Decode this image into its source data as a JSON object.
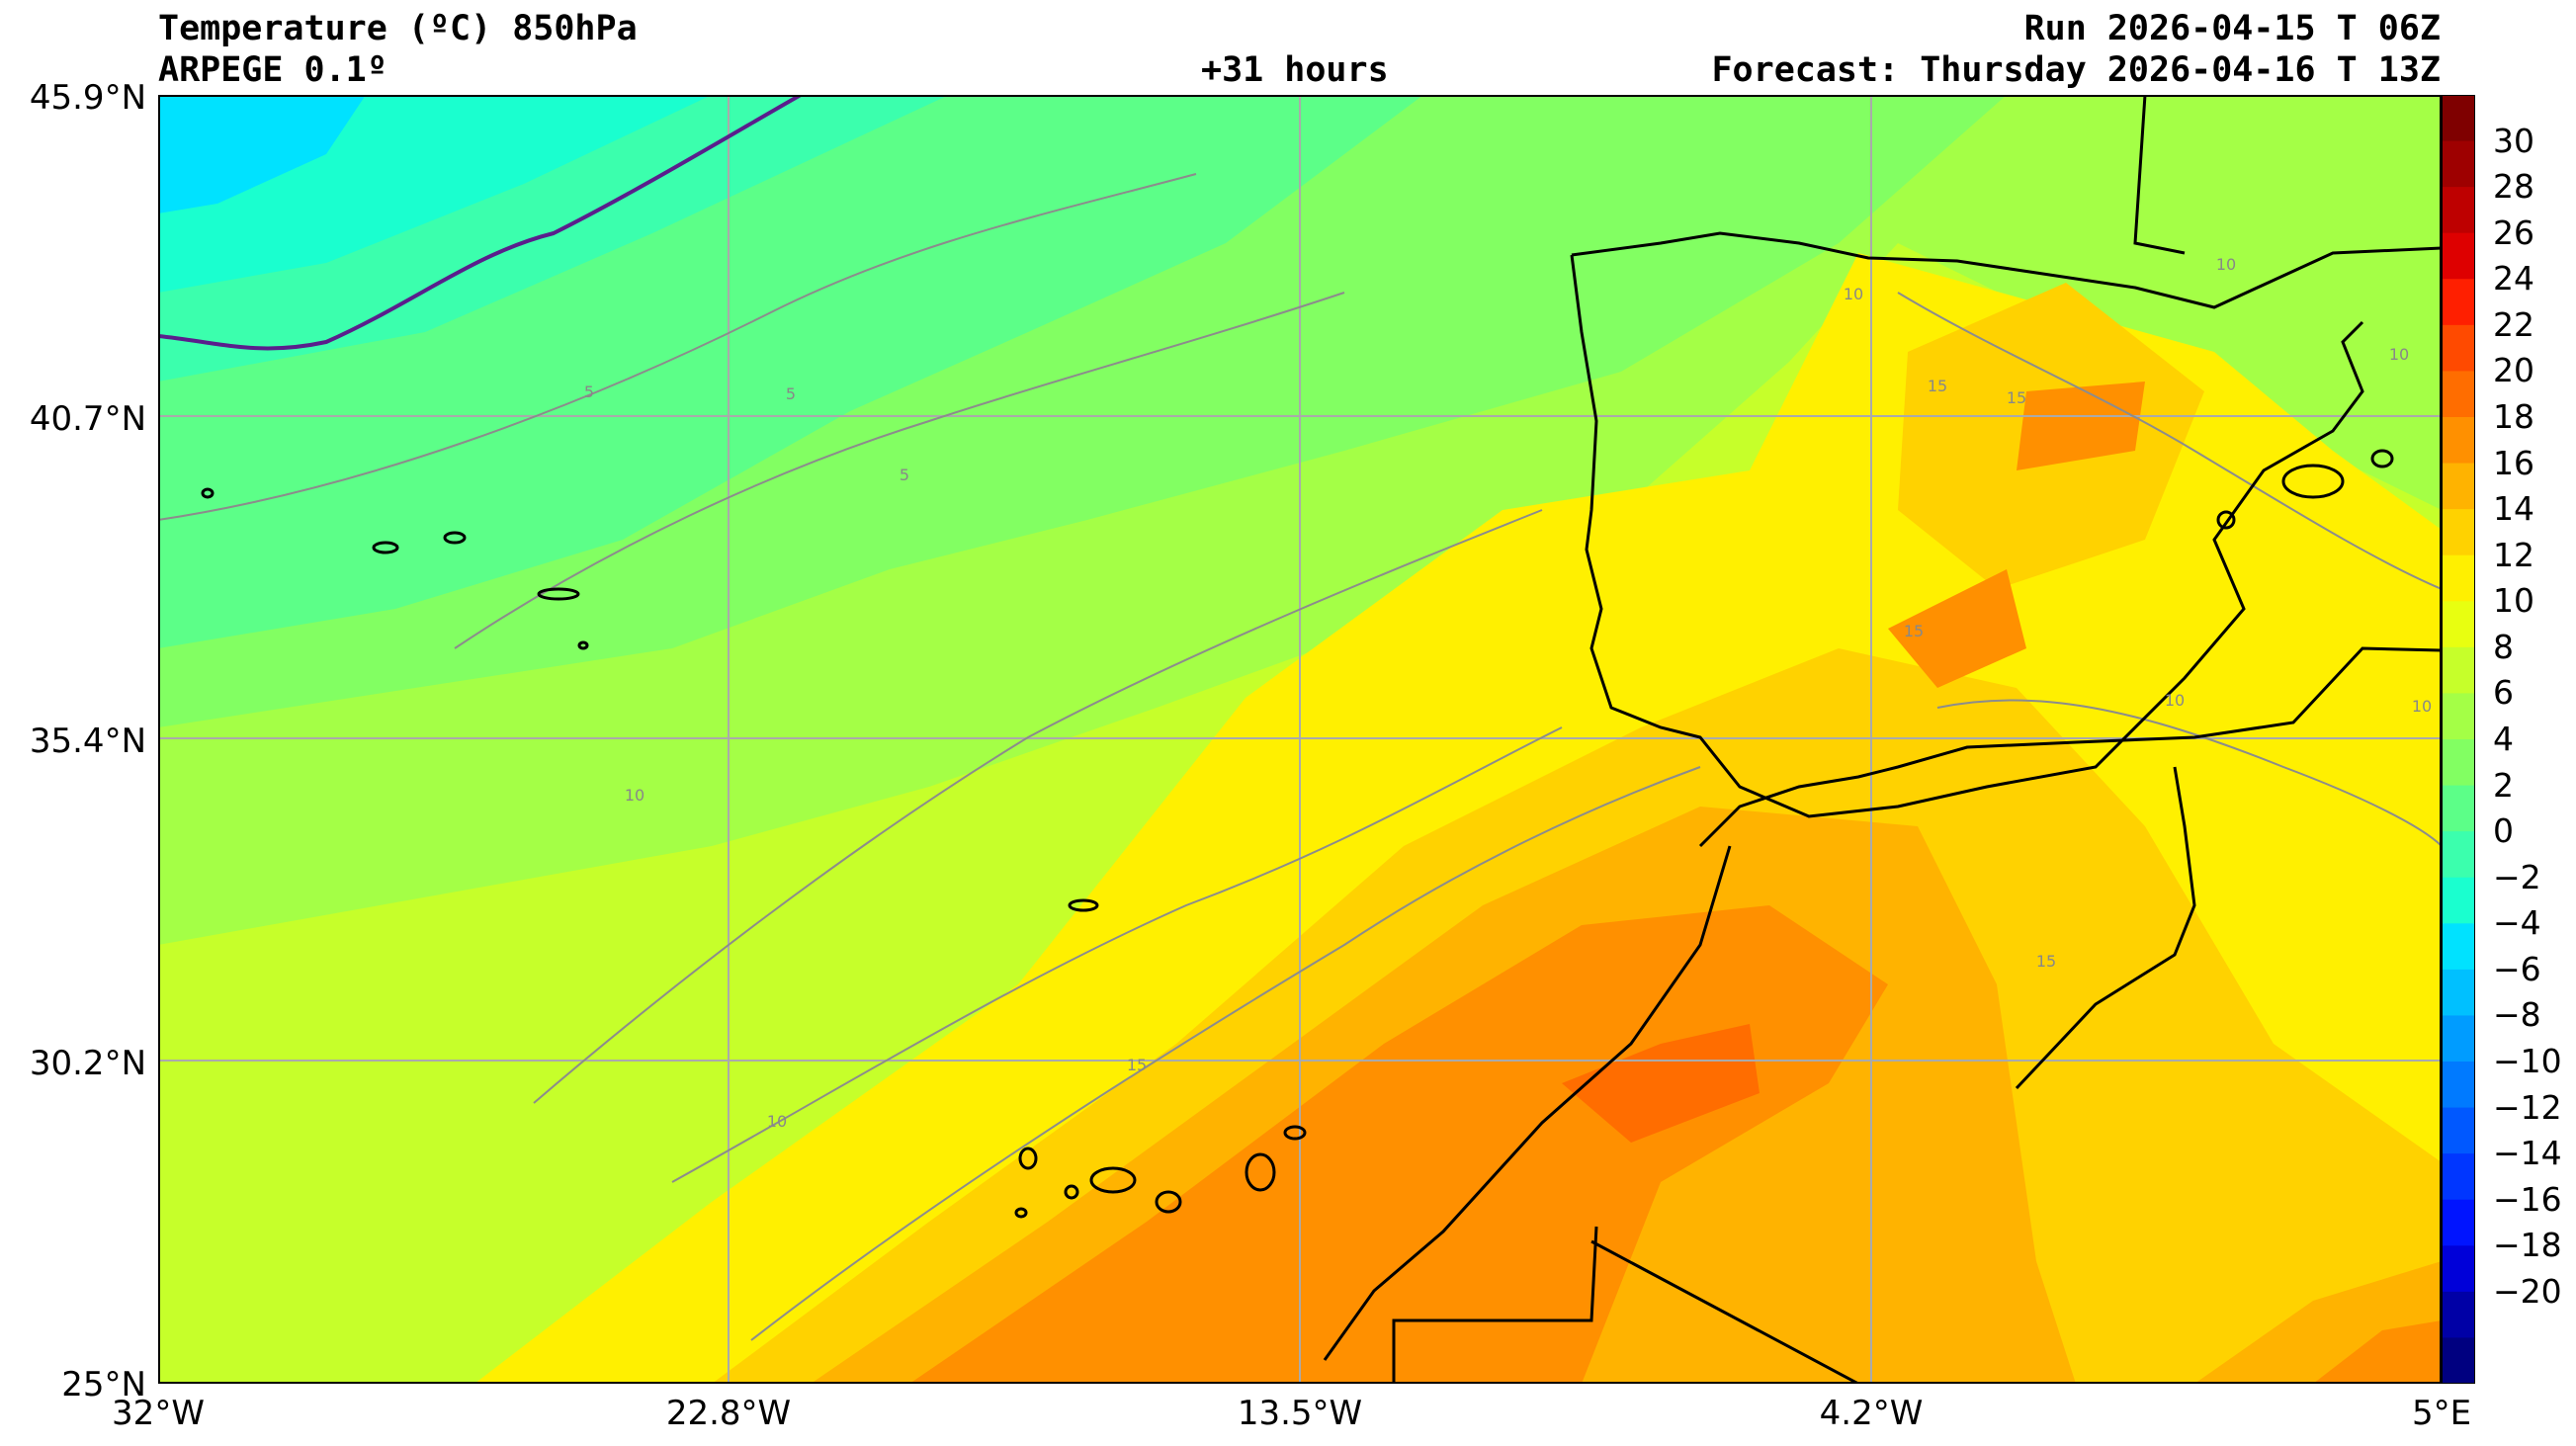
{
  "header": {
    "title": "Temperature (ºC) 850hPa",
    "model": "ARPEGE 0.1º",
    "lead_time": "+31 hours",
    "run": "Run 2026-04-15 T 06Z",
    "forecast": "Forecast: Thursday 2026-04-16 T 13Z"
  },
  "axes": {
    "lat_labels": [
      "45.9°N",
      "40.7°N",
      "35.4°N",
      "30.2°N",
      "25°N"
    ],
    "lon_labels": [
      "32°W",
      "22.8°W",
      "13.5°W",
      "4.2°W",
      "5°E"
    ]
  },
  "map": {
    "extent": {
      "lon_min": -32,
      "lon_max": 5,
      "lat_min": 25,
      "lat_max": 45.9
    },
    "region": "Iberian Peninsula, Morocco and eastern North Atlantic",
    "contour_labels": [
      "5",
      "5",
      "5",
      "10",
      "10",
      "10",
      "10",
      "10",
      "10",
      "10",
      "15",
      "15",
      "15",
      "15",
      "15"
    ]
  },
  "colorbar": {
    "labels": [
      "30",
      "28",
      "26",
      "24",
      "22",
      "20",
      "18",
      "16",
      "14",
      "12",
      "10",
      "8",
      "6",
      "4",
      "2",
      "0",
      "−2",
      "−4",
      "−6",
      "−8",
      "−10",
      "−12",
      "−14",
      "−16",
      "−18",
      "−20"
    ],
    "colors": [
      "#7f0000",
      "#9e0000",
      "#be0000",
      "#de0000",
      "#ff1f00",
      "#ff4a00",
      "#ff6d00",
      "#ff9000",
      "#ffb300",
      "#ffd200",
      "#fff000",
      "#e8ff10",
      "#c6ff2a",
      "#a4ff46",
      "#82ff62",
      "#5cff88",
      "#3bffad",
      "#1affcf",
      "#00e2ff",
      "#00c0ff",
      "#009cff",
      "#007aff",
      "#0058ff",
      "#0036ff",
      "#0014ff",
      "#0000d9",
      "#0000a6",
      "#000080"
    ]
  }
}
